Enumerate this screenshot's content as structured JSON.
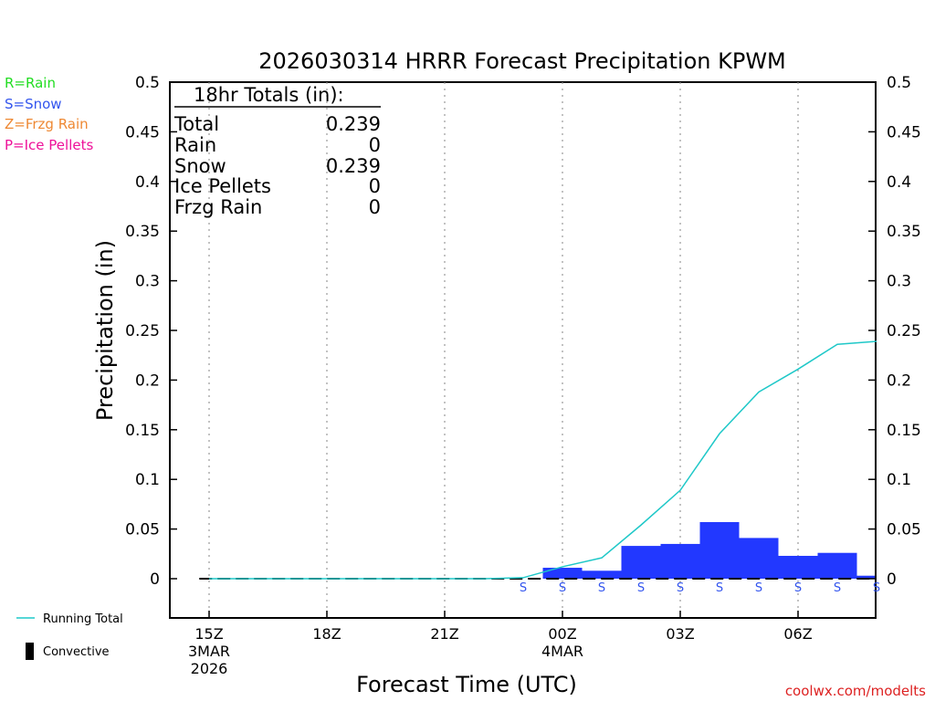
{
  "chart_data": {
    "type": "bar",
    "title": "2026030314 HRRR Forecast Precipitation KPWM",
    "xlabel": "Forecast Time (UTC)",
    "ylabel": "Precipitation (in)",
    "ylim": [
      -0.04,
      0.5
    ],
    "yticks": [
      "0",
      "0.05",
      "0.1",
      "0.15",
      "0.2",
      "0.25",
      "0.3",
      "0.35",
      "0.4",
      "0.45",
      "0.5"
    ],
    "ytick_values": [
      0,
      0.05,
      0.1,
      0.15,
      0.2,
      0.25,
      0.3,
      0.35,
      0.4,
      0.45,
      0.5
    ],
    "xlim_hours": [
      14.75,
      32.0
    ],
    "xticks": [
      {
        "hour": 15,
        "line1": "15Z",
        "line2": "3MAR",
        "line3": "2026"
      },
      {
        "hour": 18,
        "line1": "18Z",
        "line2": "",
        "line3": ""
      },
      {
        "hour": 21,
        "line1": "21Z",
        "line2": "",
        "line3": ""
      },
      {
        "hour": 24,
        "line1": "00Z",
        "line2": "4MAR",
        "line3": ""
      },
      {
        "hour": 27,
        "line1": "03Z",
        "line2": "",
        "line3": ""
      },
      {
        "hour": 30,
        "line1": "06Z",
        "line2": "",
        "line3": ""
      }
    ],
    "grid": "vertical-dotted",
    "hourly_bars": [
      {
        "start": 23.5,
        "end": 24.5,
        "value": 0.011,
        "type": "S"
      },
      {
        "start": 24.5,
        "end": 25.5,
        "value": 0.008,
        "type": "S"
      },
      {
        "start": 25.5,
        "end": 26.5,
        "value": 0.033,
        "type": "S"
      },
      {
        "start": 26.5,
        "end": 27.5,
        "value": 0.035,
        "type": "S"
      },
      {
        "start": 27.5,
        "end": 28.5,
        "value": 0.057,
        "type": "S"
      },
      {
        "start": 28.5,
        "end": 29.5,
        "value": 0.041,
        "type": "S"
      },
      {
        "start": 29.5,
        "end": 30.5,
        "value": 0.023,
        "type": "S"
      },
      {
        "start": 30.5,
        "end": 31.5,
        "value": 0.026,
        "type": "S"
      },
      {
        "start": 31.5,
        "end": 32.0,
        "value": 0.003,
        "type": "S"
      }
    ],
    "ptype_markers": [
      {
        "hour": 23.0,
        "label": "S"
      },
      {
        "hour": 24.0,
        "label": "S"
      },
      {
        "hour": 25.0,
        "label": "S"
      },
      {
        "hour": 26.0,
        "label": "S"
      },
      {
        "hour": 27.0,
        "label": "S"
      },
      {
        "hour": 28.0,
        "label": "S"
      },
      {
        "hour": 29.0,
        "label": "S"
      },
      {
        "hour": 30.0,
        "label": "S"
      },
      {
        "hour": 31.0,
        "label": "S"
      },
      {
        "hour": 32.0,
        "label": "S"
      }
    ],
    "running_total": {
      "name": "Running Total",
      "x": [
        15,
        16,
        17,
        18,
        19,
        20,
        21,
        22,
        23,
        24,
        25,
        26,
        27,
        28,
        29,
        30,
        31,
        32
      ],
      "y": [
        0,
        0,
        0,
        0,
        0,
        0,
        0,
        0,
        0.001,
        0.012,
        0.021,
        0.054,
        0.089,
        0.146,
        0.188,
        0.211,
        0.236,
        0.239
      ]
    },
    "colors": {
      "snow_bar": "#2238ff",
      "running_total": "#1fc8c8",
      "rain": "#22dd22",
      "snow": "#3355ee",
      "frzg_rain": "#ee8833",
      "ice_pellets": "#ee1199",
      "credit": "#dd2222"
    },
    "totals_box": {
      "heading": "18hr Totals (in):",
      "rows": [
        {
          "label": "Total",
          "value": "0.239"
        },
        {
          "label": "Rain",
          "value": "0"
        },
        {
          "label": "Snow",
          "value": "0.239"
        },
        {
          "label": "Ice Pellets",
          "value": "0"
        },
        {
          "label": "Frzg Rain",
          "value": "0"
        }
      ]
    },
    "key": {
      "rain": "R=Rain",
      "snow": "S=Snow",
      "frzg_rain": "Z=Frzg Rain",
      "ice_pellets": "P=Ice Pellets"
    },
    "legend": {
      "running_total": "Running Total",
      "convective": "Convective"
    },
    "credit": "coolwx.com/modelts"
  }
}
